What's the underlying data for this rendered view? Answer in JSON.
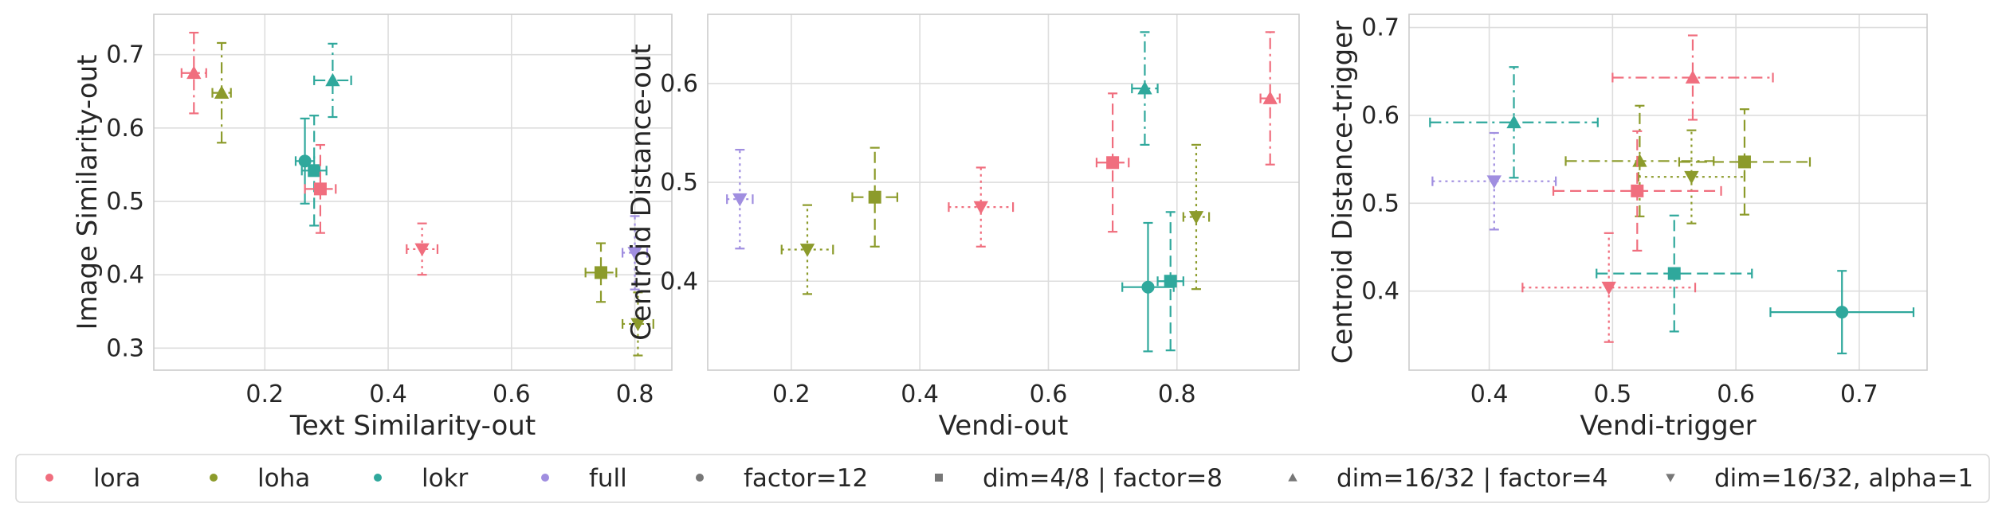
{
  "palette": {
    "lora": "#f06e7e",
    "loha": "#8c9b2b",
    "lokr": "#2fa89c",
    "full": "#a08ee0",
    "grid": "#dddddd",
    "spine": "#cccccc",
    "neutral": "#777777"
  },
  "chart_data": [
    {
      "type": "scatter",
      "xlabel": "Text Similarity-out",
      "ylabel": "Image Similarity-out",
      "xlim": [
        0.02,
        0.86
      ],
      "ylim": [
        0.27,
        0.755
      ],
      "xticks": [
        0.2,
        0.4,
        0.6,
        0.8
      ],
      "yticks": [
        0.3,
        0.4,
        0.5,
        0.6,
        0.7
      ],
      "grid": true,
      "points": [
        {
          "algo": "lora",
          "config": "dim=16/32 | factor=4",
          "x": 0.085,
          "y": 0.675,
          "xerr": 0.02,
          "yerr": 0.055
        },
        {
          "algo": "loha",
          "config": "dim=16/32 | factor=4",
          "x": 0.13,
          "y": 0.648,
          "xerr": 0.015,
          "yerr": 0.068
        },
        {
          "algo": "lokr",
          "config": "factor=12",
          "x": 0.265,
          "y": 0.555,
          "xerr": 0.015,
          "yerr": 0.058
        },
        {
          "algo": "lokr",
          "config": "dim=4/8 | factor=8",
          "x": 0.28,
          "y": 0.542,
          "xerr": 0.02,
          "yerr": 0.075
        },
        {
          "algo": "lora",
          "config": "dim=4/8 | factor=8",
          "x": 0.29,
          "y": 0.517,
          "xerr": 0.025,
          "yerr": 0.06
        },
        {
          "algo": "lokr",
          "config": "dim=16/32 | factor=4",
          "x": 0.31,
          "y": 0.665,
          "xerr": 0.03,
          "yerr": 0.05
        },
        {
          "algo": "lora",
          "config": "dim=16/32, alpha=1",
          "x": 0.455,
          "y": 0.435,
          "xerr": 0.025,
          "yerr": 0.035
        },
        {
          "algo": "loha",
          "config": "dim=4/8 | factor=8",
          "x": 0.745,
          "y": 0.403,
          "xerr": 0.025,
          "yerr": 0.04
        },
        {
          "algo": "full",
          "config": "dim=16/32, alpha=1",
          "x": 0.8,
          "y": 0.43,
          "xerr": 0.02,
          "yerr": 0.05
        },
        {
          "algo": "loha",
          "config": "dim=16/32, alpha=1",
          "x": 0.805,
          "y": 0.333,
          "xerr": 0.025,
          "yerr": 0.043
        }
      ]
    },
    {
      "type": "scatter",
      "xlabel": "Vendi-out",
      "ylabel": "Centroid Distance-out",
      "xlim": [
        0.07,
        0.99
      ],
      "ylim": [
        0.31,
        0.67
      ],
      "xticks": [
        0.2,
        0.4,
        0.6,
        0.8
      ],
      "yticks": [
        0.4,
        0.5,
        0.6
      ],
      "grid": true,
      "points": [
        {
          "algo": "full",
          "config": "dim=16/32, alpha=1",
          "x": 0.12,
          "y": 0.483,
          "xerr": 0.02,
          "yerr": 0.05
        },
        {
          "algo": "loha",
          "config": "dim=16/32, alpha=1",
          "x": 0.225,
          "y": 0.432,
          "xerr": 0.04,
          "yerr": 0.045
        },
        {
          "algo": "loha",
          "config": "dim=4/8 | factor=8",
          "x": 0.33,
          "y": 0.485,
          "xerr": 0.035,
          "yerr": 0.05
        },
        {
          "algo": "lora",
          "config": "dim=16/32, alpha=1",
          "x": 0.495,
          "y": 0.475,
          "xerr": 0.05,
          "yerr": 0.04
        },
        {
          "algo": "lora",
          "config": "dim=4/8 | factor=8",
          "x": 0.7,
          "y": 0.52,
          "xerr": 0.025,
          "yerr": 0.07
        },
        {
          "algo": "lokr",
          "config": "dim=16/32 | factor=4",
          "x": 0.75,
          "y": 0.595,
          "xerr": 0.02,
          "yerr": 0.057
        },
        {
          "algo": "lokr",
          "config": "factor=12",
          "x": 0.755,
          "y": 0.394,
          "xerr": 0.04,
          "yerr": 0.065
        },
        {
          "algo": "lokr",
          "config": "dim=4/8 | factor=8",
          "x": 0.79,
          "y": 0.4,
          "xerr": 0.02,
          "yerr": 0.07
        },
        {
          "algo": "loha",
          "config": "dim=16/32, alpha=1",
          "x": 0.83,
          "y": 0.465,
          "xerr": 0.02,
          "yerr": 0.073
        },
        {
          "algo": "lora",
          "config": "dim=16/32 | factor=4",
          "x": 0.945,
          "y": 0.585,
          "xerr": 0.015,
          "yerr": 0.067
        }
      ]
    },
    {
      "type": "scatter",
      "xlabel": "Vendi-trigger",
      "ylabel": "Centroid Distance-trigger",
      "xlim": [
        0.335,
        0.755
      ],
      "ylim": [
        0.31,
        0.715
      ],
      "xticks": [
        0.4,
        0.5,
        0.6,
        0.7
      ],
      "yticks": [
        0.4,
        0.5,
        0.6,
        0.7
      ],
      "grid": true,
      "points": [
        {
          "algo": "lora",
          "config": "dim=16/32 | factor=4",
          "x": 0.565,
          "y": 0.643,
          "xerr": 0.065,
          "yerr": 0.048
        },
        {
          "algo": "lokr",
          "config": "dim=16/32 | factor=4",
          "x": 0.42,
          "y": 0.592,
          "xerr": 0.068,
          "yerr": 0.063
        },
        {
          "algo": "loha",
          "config": "dim=16/32 | factor=4",
          "x": 0.522,
          "y": 0.548,
          "xerr": 0.06,
          "yerr": 0.063
        },
        {
          "algo": "loha",
          "config": "dim=4/8 | factor=8",
          "x": 0.607,
          "y": 0.547,
          "xerr": 0.053,
          "yerr": 0.06
        },
        {
          "algo": "loha",
          "config": "dim=16/32, alpha=1",
          "x": 0.564,
          "y": 0.53,
          "xerr": 0.043,
          "yerr": 0.053
        },
        {
          "algo": "full",
          "config": "dim=16/32, alpha=1",
          "x": 0.404,
          "y": 0.525,
          "xerr": 0.05,
          "yerr": 0.055
        },
        {
          "algo": "lora",
          "config": "dim=4/8 | factor=8",
          "x": 0.52,
          "y": 0.514,
          "xerr": 0.068,
          "yerr": 0.068
        },
        {
          "algo": "lokr",
          "config": "dim=4/8 | factor=8",
          "x": 0.55,
          "y": 0.42,
          "xerr": 0.063,
          "yerr": 0.066
        },
        {
          "algo": "lora",
          "config": "dim=16/32, alpha=1",
          "x": 0.497,
          "y": 0.404,
          "xerr": 0.07,
          "yerr": 0.062
        },
        {
          "algo": "lokr",
          "config": "factor=12",
          "x": 0.686,
          "y": 0.376,
          "xerr": 0.058,
          "yerr": 0.047
        }
      ]
    }
  ],
  "legend": {
    "placement": "bottom",
    "entries": [
      {
        "label": "lora",
        "kind": "algo",
        "color": "#f06e7e",
        "marker": "circle"
      },
      {
        "label": "loha",
        "kind": "algo",
        "color": "#8c9b2b",
        "marker": "circle"
      },
      {
        "label": "lokr",
        "kind": "algo",
        "color": "#2fa89c",
        "marker": "circle"
      },
      {
        "label": "full",
        "kind": "algo",
        "color": "#a08ee0",
        "marker": "circle"
      },
      {
        "label": "factor=12",
        "kind": "config",
        "color": "#777777",
        "marker": "circle"
      },
      {
        "label": "dim=4/8 | factor=8",
        "kind": "config",
        "color": "#777777",
        "marker": "square"
      },
      {
        "label": "dim=16/32 | factor=4",
        "kind": "config",
        "color": "#777777",
        "marker": "triangle-up"
      },
      {
        "label": "dim=16/32, alpha=1",
        "kind": "config",
        "color": "#777777",
        "marker": "triangle-down"
      }
    ]
  },
  "config_styles": {
    "factor=12": {
      "marker": "circle",
      "dash": "solid"
    },
    "dim=4/8 | factor=8": {
      "marker": "square",
      "dash": "dashed"
    },
    "dim=16/32 | factor=4": {
      "marker": "triangle-up",
      "dash": "dashdot"
    },
    "dim=16/32, alpha=1": {
      "marker": "triangle-down",
      "dash": "dotted"
    }
  }
}
